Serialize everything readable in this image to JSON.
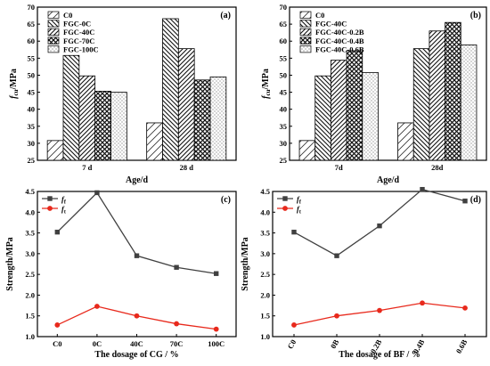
{
  "chart_data": [
    {
      "type": "bar",
      "panel_label": "(a)",
      "xlabel": "Age/d",
      "ylabel": "f_cu/MPa",
      "ylim": [
        25,
        70
      ],
      "yticks": [
        25,
        30,
        35,
        40,
        45,
        50,
        55,
        60,
        65,
        70
      ],
      "categories": [
        "7 d",
        "28 d"
      ],
      "legend_position": "top-left",
      "series": [
        {
          "name": "C0",
          "pattern": "diag-up-sparse",
          "values": [
            30.8,
            36.0
          ]
        },
        {
          "name": "FGC-0C",
          "pattern": "diag-down",
          "values": [
            55.8,
            66.6
          ]
        },
        {
          "name": "FGC-40C",
          "pattern": "diag-up",
          "values": [
            49.8,
            57.8
          ]
        },
        {
          "name": "FGC-70C",
          "pattern": "crosshatch",
          "values": [
            45.3,
            48.6
          ]
        },
        {
          "name": "FGC-100C",
          "pattern": "dots",
          "values": [
            45.0,
            49.5
          ]
        }
      ]
    },
    {
      "type": "bar",
      "panel_label": "(b)",
      "xlabel": "Age/d",
      "ylabel": "f_cu/MPa",
      "ylim": [
        25,
        70
      ],
      "yticks": [
        25,
        30,
        35,
        40,
        45,
        50,
        55,
        60,
        65,
        70
      ],
      "categories": [
        "7d",
        "28d"
      ],
      "legend_position": "top-left",
      "series": [
        {
          "name": "C0",
          "pattern": "diag-up-sparse",
          "values": [
            30.8,
            36.0
          ]
        },
        {
          "name": "FGC-40C",
          "pattern": "diag-down",
          "values": [
            49.8,
            57.8
          ]
        },
        {
          "name": "FGC-40C-0.2B",
          "pattern": "diag-up",
          "values": [
            54.4,
            63.0
          ]
        },
        {
          "name": "FGC-40C-0.4B",
          "pattern": "crosshatch",
          "values": [
            57.2,
            65.5
          ]
        },
        {
          "name": "FGC-40C-0.6B",
          "pattern": "dots",
          "values": [
            50.8,
            58.9
          ]
        }
      ]
    },
    {
      "type": "line",
      "panel_label": "(c)",
      "xlabel": "The dosage of CG / %",
      "ylabel": "Strength/MPa",
      "ylim": [
        1.0,
        4.5
      ],
      "yticks": [
        "1.0",
        "1.5",
        "2.0",
        "2.5",
        "3.0",
        "3.5",
        "4.0",
        "4.5"
      ],
      "categories": [
        "C0",
        "0C",
        "40C",
        "70C",
        "100C"
      ],
      "legend_position": "top-left",
      "series": [
        {
          "name": "f_f",
          "color": "#404040",
          "marker": "square",
          "values": [
            3.52,
            4.47,
            2.95,
            2.67,
            2.52
          ]
        },
        {
          "name": "f_t",
          "color": "#e8291c",
          "marker": "circle",
          "values": [
            1.28,
            1.73,
            1.5,
            1.31,
            1.18
          ]
        }
      ]
    },
    {
      "type": "line",
      "panel_label": "(d)",
      "xlabel": "The dosage of BF / %",
      "ylabel": "Strength/MPa",
      "ylim": [
        1.0,
        4.5
      ],
      "yticks": [
        "1.0",
        "1.5",
        "2.0",
        "2.5",
        "3.0",
        "3.5",
        "4.0",
        "4.5"
      ],
      "categories": [
        "C0",
        "0B",
        "0.2B",
        "0.4B",
        "0.6B"
      ],
      "rotated_xticks": true,
      "legend_position": "top-left",
      "series": [
        {
          "name": "f_f",
          "color": "#404040",
          "marker": "square",
          "values": [
            3.52,
            2.95,
            3.67,
            4.55,
            4.27
          ]
        },
        {
          "name": "f_t",
          "color": "#e8291c",
          "marker": "circle",
          "values": [
            1.28,
            1.5,
            1.63,
            1.81,
            1.69
          ]
        }
      ]
    }
  ]
}
